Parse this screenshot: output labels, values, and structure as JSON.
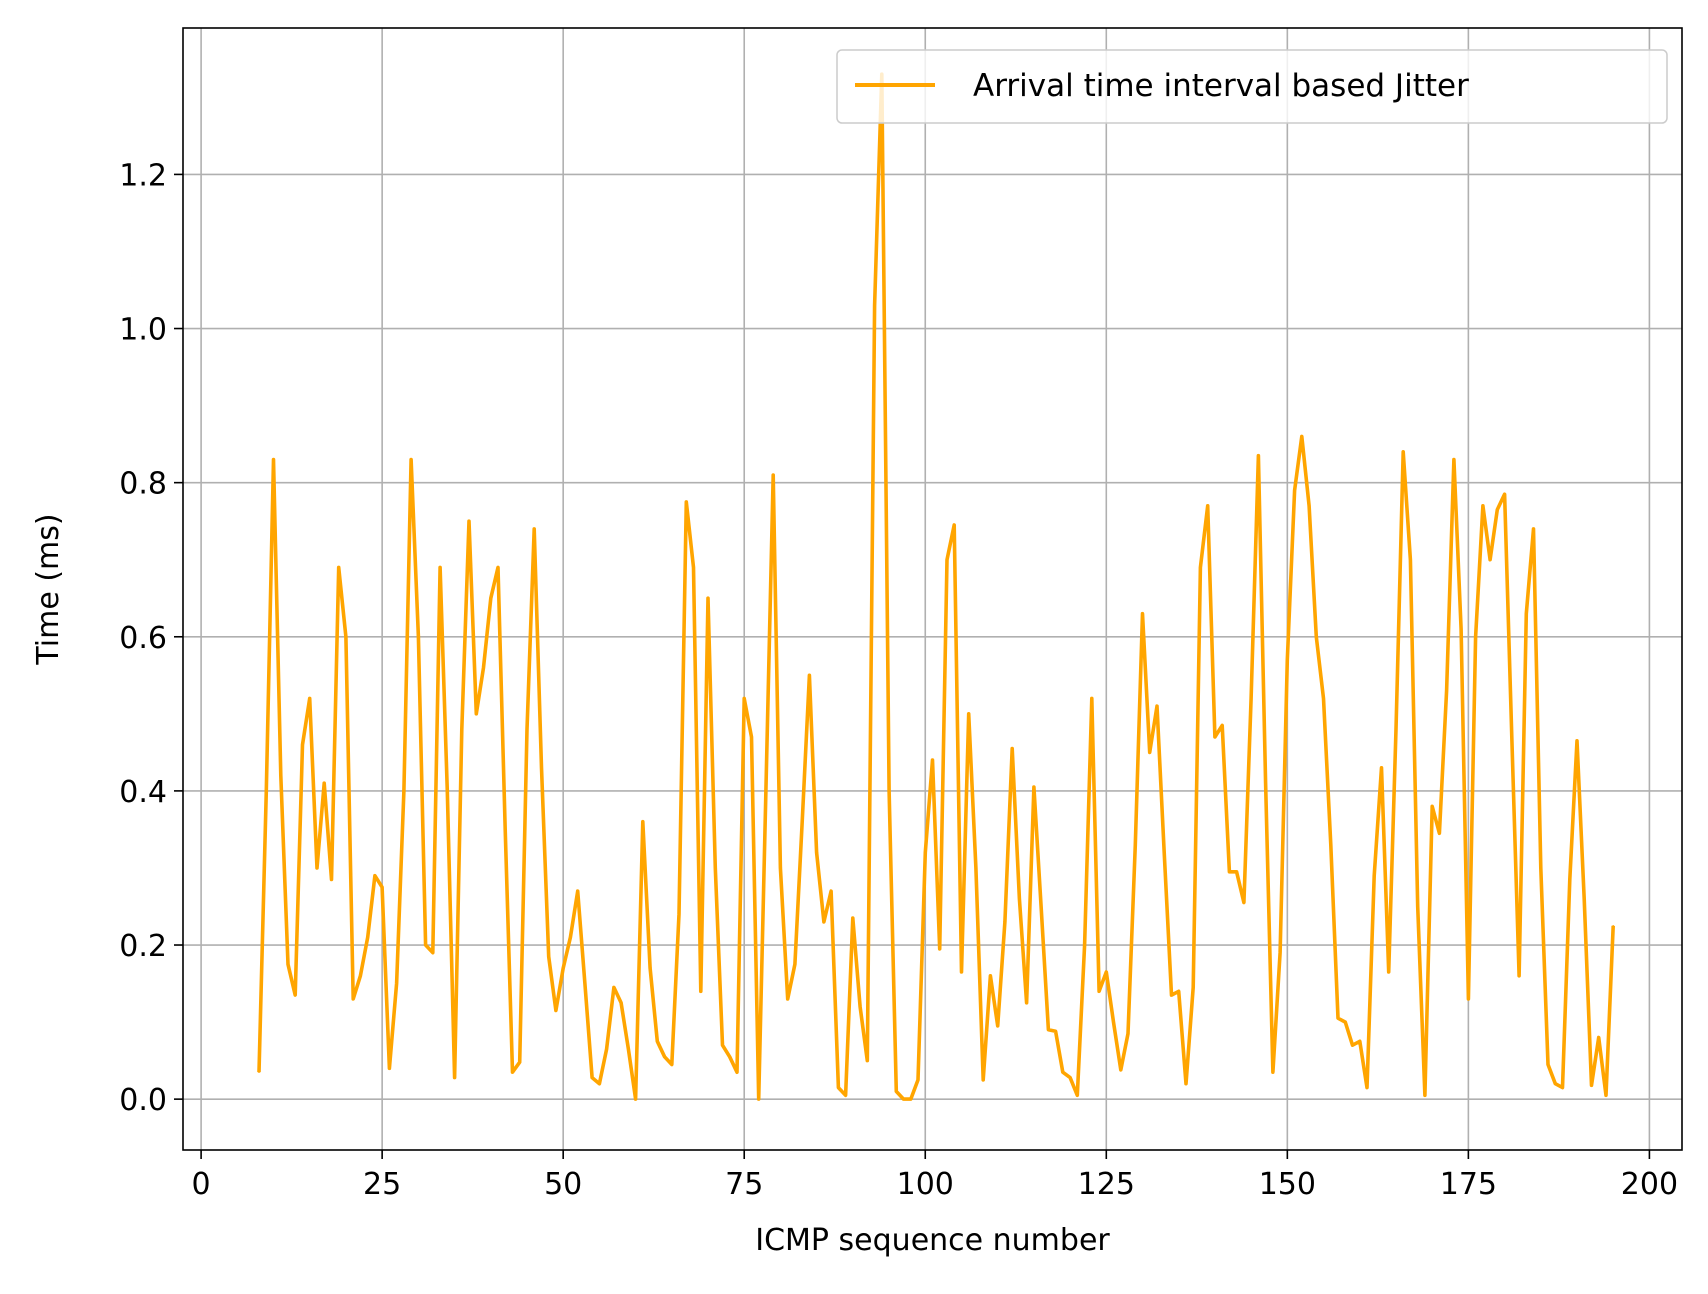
{
  "chart_data": {
    "type": "line",
    "xlabel": "ICMP sequence number",
    "ylabel": "Time (ms)",
    "xlim": [
      -2.5,
      204.5
    ],
    "ylim": [
      -0.066,
      1.39
    ],
    "xticks": [
      0,
      25,
      50,
      75,
      100,
      125,
      150,
      175,
      200
    ],
    "yticks": [
      0.0,
      0.2,
      0.4,
      0.6,
      0.8,
      1.0,
      1.2
    ],
    "xtick_labels": [
      "0",
      "25",
      "50",
      "75",
      "100",
      "125",
      "150",
      "175",
      "200"
    ],
    "ytick_labels": [
      "0.0",
      "0.2",
      "0.4",
      "0.6",
      "0.8",
      "1.0",
      "1.2"
    ],
    "grid": true,
    "legend_position": "top-right",
    "colors": {
      "series": "#FFA500",
      "grid": "#b0b0b0",
      "axes": "#000000"
    },
    "series": [
      {
        "name": "Arrival time interval based Jitter",
        "x": [
          8,
          9,
          10,
          11,
          12,
          13,
          14,
          15,
          16,
          17,
          18,
          19,
          20,
          21,
          22,
          23,
          24,
          25,
          26,
          27,
          28,
          29,
          30,
          31,
          32,
          33,
          34,
          35,
          36,
          37,
          38,
          39,
          40,
          41,
          42,
          43,
          44,
          45,
          46,
          47,
          48,
          49,
          50,
          51,
          52,
          53,
          54,
          55,
          56,
          57,
          58,
          59,
          60,
          61,
          62,
          63,
          64,
          65,
          66,
          67,
          68,
          69,
          70,
          71,
          72,
          73,
          74,
          75,
          76,
          77,
          78,
          79,
          80,
          81,
          82,
          83,
          84,
          85,
          86,
          87,
          88,
          89,
          90,
          91,
          92,
          93,
          94,
          95,
          96,
          97,
          98,
          99,
          100,
          101,
          102,
          103,
          104,
          105,
          106,
          107,
          108,
          109,
          110,
          111,
          112,
          113,
          114,
          115,
          116,
          117,
          118,
          119,
          120,
          121,
          122,
          123,
          124,
          125,
          126,
          127,
          128,
          129,
          130,
          131,
          132,
          133,
          134,
          135,
          136,
          137,
          138,
          139,
          140,
          141,
          142,
          143,
          144,
          145,
          146,
          147,
          148,
          149,
          150,
          151,
          152,
          153,
          154,
          155,
          156,
          157,
          158,
          159,
          160,
          161,
          162,
          163,
          164,
          165,
          166,
          167,
          168,
          169,
          170,
          171,
          172,
          173,
          174,
          175,
          176,
          177,
          178,
          179,
          180,
          181,
          182,
          183,
          184,
          185,
          186,
          187,
          188,
          189,
          190,
          191,
          192,
          193,
          194,
          195
        ],
        "y": [
          0.035,
          0.4,
          0.83,
          0.42,
          0.175,
          0.135,
          0.46,
          0.52,
          0.3,
          0.41,
          0.285,
          0.69,
          0.6,
          0.13,
          0.16,
          0.21,
          0.29,
          0.275,
          0.04,
          0.15,
          0.4,
          0.83,
          0.6,
          0.2,
          0.19,
          0.69,
          0.4,
          0.028,
          0.48,
          0.75,
          0.5,
          0.56,
          0.65,
          0.69,
          0.35,
          0.035,
          0.048,
          0.48,
          0.74,
          0.43,
          0.185,
          0.115,
          0.17,
          0.21,
          0.27,
          0.15,
          0.028,
          0.02,
          0.065,
          0.145,
          0.125,
          0.065,
          0.0,
          0.36,
          0.17,
          0.075,
          0.055,
          0.045,
          0.24,
          0.775,
          0.69,
          0.14,
          0.65,
          0.3,
          0.07,
          0.055,
          0.035,
          0.52,
          0.47,
          0.0,
          0.4,
          0.81,
          0.3,
          0.13,
          0.175,
          0.36,
          0.55,
          0.32,
          0.23,
          0.27,
          0.015,
          0.005,
          0.235,
          0.12,
          0.05,
          1.03,
          1.33,
          0.4,
          0.01,
          0.0,
          0.0,
          0.025,
          0.32,
          0.44,
          0.195,
          0.7,
          0.745,
          0.165,
          0.5,
          0.3,
          0.025,
          0.16,
          0.095,
          0.23,
          0.455,
          0.26,
          0.125,
          0.405,
          0.25,
          0.09,
          0.088,
          0.035,
          0.028,
          0.005,
          0.2,
          0.52,
          0.14,
          0.165,
          0.1,
          0.038,
          0.085,
          0.33,
          0.63,
          0.45,
          0.51,
          0.32,
          0.135,
          0.14,
          0.02,
          0.145,
          0.69,
          0.77,
          0.47,
          0.485,
          0.295,
          0.295,
          0.255,
          0.52,
          0.835,
          0.41,
          0.035,
          0.19,
          0.57,
          0.79,
          0.86,
          0.77,
          0.6,
          0.52,
          0.33,
          0.105,
          0.1,
          0.07,
          0.075,
          0.015,
          0.29,
          0.43,
          0.165,
          0.48,
          0.84,
          0.7,
          0.25,
          0.005,
          0.38,
          0.345,
          0.53,
          0.83,
          0.61,
          0.13,
          0.6,
          0.77,
          0.7,
          0.765,
          0.785,
          0.47,
          0.16,
          0.63,
          0.74,
          0.3,
          0.045,
          0.02,
          0.015,
          0.285,
          0.465,
          0.26,
          0.018,
          0.08,
          0.005,
          0.225
        ]
      }
    ]
  }
}
